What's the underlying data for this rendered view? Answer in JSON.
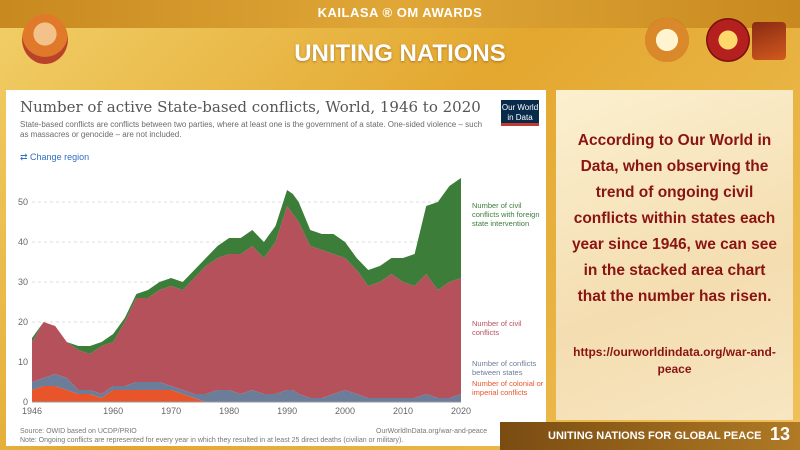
{
  "header": {
    "brand": "KAILASA ® OM AWARDS",
    "title": "UNITING NATIONS"
  },
  "chart_data": {
    "type": "area",
    "stacked": true,
    "title": "Number of active State-based conflicts, World, 1946 to 2020",
    "subtitle": "State-based conflicts are conflicts between two parties, where at least one is the government of a state. One-sided violence – such as massacres or genocide – are not included.",
    "change_region": "⇄ Change region",
    "logo_text": "Our World in Data",
    "source": "Source: OWID based on UCDP/PRIO",
    "source_url": "OurWorldInData.org/war-and-peace",
    "note": "Note: Ongoing conflicts are represented for every year in which they resulted in at least 25 direct deaths (civilian or military).",
    "xlim": [
      1946,
      2020
    ],
    "ylim": [
      0,
      55
    ],
    "x_ticks": [
      "1946",
      "1960",
      "1970",
      "1980",
      "1990",
      "2000",
      "2010",
      "2020"
    ],
    "y_ticks": [
      "0",
      "10",
      "20",
      "30",
      "40",
      "50"
    ],
    "x": [
      1946,
      1948,
      1950,
      1952,
      1954,
      1956,
      1958,
      1960,
      1962,
      1964,
      1966,
      1968,
      1970,
      1972,
      1974,
      1976,
      1978,
      1980,
      1982,
      1984,
      1986,
      1988,
      1990,
      1991,
      1992,
      1994,
      1996,
      1998,
      2000,
      2002,
      2004,
      2006,
      2008,
      2010,
      2012,
      2014,
      2016,
      2018,
      2020
    ],
    "series": [
      {
        "name": "Number of colonial or imperial conflicts",
        "color": "#e8552a",
        "values": [
          3,
          4,
          4,
          3,
          2,
          2,
          1,
          3,
          3,
          3,
          3,
          3,
          3,
          2,
          1,
          0,
          0,
          0,
          0,
          0,
          0,
          0,
          0,
          0,
          0,
          0,
          0,
          0,
          0,
          0,
          0,
          0,
          0,
          0,
          0,
          0,
          0,
          0,
          0
        ]
      },
      {
        "name": "Number of conflicts between states",
        "color": "#6c7d99",
        "values": [
          2,
          2,
          3,
          3,
          1,
          1,
          1,
          1,
          1,
          2,
          2,
          2,
          1,
          1,
          1,
          2,
          3,
          3,
          2,
          3,
          2,
          2,
          3,
          3,
          2,
          1,
          1,
          2,
          3,
          2,
          1,
          1,
          1,
          1,
          1,
          2,
          1,
          1,
          2
        ]
      },
      {
        "name": "Number of civil conflicts",
        "color": "#b5515b",
        "values": [
          10,
          14,
          12,
          9,
          10,
          9,
          12,
          11,
          16,
          21,
          21,
          23,
          25,
          25,
          29,
          32,
          33,
          34,
          35,
          36,
          34,
          38,
          46,
          44,
          43,
          38,
          37,
          35,
          33,
          31,
          28,
          29,
          31,
          29,
          28,
          30,
          27,
          29,
          29
        ]
      },
      {
        "name": "Number of civil conflicts with foreign state intervention",
        "color": "#3c7d3a",
        "values": [
          1,
          0,
          0,
          0,
          1,
          2,
          1,
          2,
          1,
          1,
          2,
          2,
          2,
          2,
          2,
          2,
          3,
          4,
          4,
          4,
          4,
          4,
          4,
          5,
          5,
          4,
          4,
          5,
          4,
          3,
          4,
          4,
          4,
          6,
          8,
          17,
          22,
          24,
          25
        ]
      }
    ],
    "legend": [
      "Number of civil conflicts with foreign state intervention",
      "Number of civil conflicts",
      "Number of conflicts between states",
      "Number of colonial or imperial conflicts"
    ]
  },
  "right_panel": {
    "text": "According to Our World in Data, when observing the trend of ongoing civil conflicts within states each year since 1946, we can see in the stacked area chart that the number has risen.",
    "link": "https://ourworldindata.org/war-and-peace"
  },
  "footer": {
    "text": "UNITING NATIONS FOR GLOBAL PEACE",
    "page_number": "13"
  }
}
